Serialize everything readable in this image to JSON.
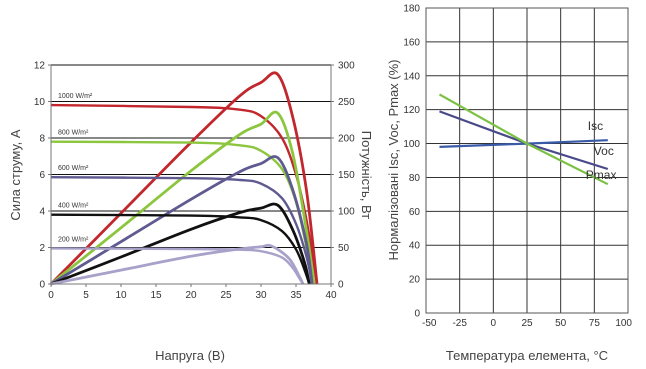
{
  "captions": {
    "left": "Напруга (В)",
    "right": "Температура елемента, °C"
  },
  "chart_data": [
    {
      "type": "line",
      "xlim": [
        0,
        40
      ],
      "ylim": [
        0,
        12
      ],
      "y2lim": [
        0,
        300
      ],
      "x_ticks": [
        "0",
        "5",
        "10",
        "15",
        "20",
        "25",
        "30",
        "35",
        "40"
      ],
      "y_ticks": [
        "0",
        "2",
        "4",
        "6",
        "8",
        "10",
        "12"
      ],
      "y2_ticks": [
        "0",
        "50",
        "100",
        "150",
        "200",
        "250",
        "300"
      ],
      "xlabel": "Напруга (В)",
      "ylabel": "Сила струму, А",
      "y2label": "Потужність, Вт",
      "grid": "horizontal",
      "series": [
        {
          "name": "1000 W/m²",
          "color": "#c1272d",
          "isc": 9.8,
          "voc": 38.0,
          "iv_points": [
            [
              0,
              9.8
            ],
            [
              20,
              9.7
            ],
            [
              27,
              9.55
            ],
            [
              30,
              9.2
            ],
            [
              33,
              8.0
            ],
            [
              35,
              6.0
            ],
            [
              36.5,
              3.5
            ],
            [
              38.0,
              0
            ]
          ],
          "power_points": [
            [
              0,
              0
            ],
            [
              10,
              97
            ],
            [
              20,
              194
            ],
            [
              27,
              258
            ],
            [
              30,
              276
            ],
            [
              32.4,
              287
            ],
            [
              34.5,
              230
            ],
            [
              36.5,
              128
            ],
            [
              38.0,
              0
            ]
          ]
        },
        {
          "name": "800 W/m²",
          "color": "#8cc63f",
          "isc": 7.8,
          "voc": 37.6,
          "iv_points": [
            [
              0,
              7.8
            ],
            [
              20,
              7.75
            ],
            [
              27,
              7.6
            ],
            [
              30,
              7.3
            ],
            [
              33,
              6.3
            ],
            [
              35,
              4.5
            ],
            [
              36.5,
              2.0
            ],
            [
              37.6,
              0
            ]
          ],
          "power_points": [
            [
              0,
              0
            ],
            [
              10,
              77
            ],
            [
              20,
              155
            ],
            [
              27,
              205
            ],
            [
              30,
              219
            ],
            [
              32.4,
              234
            ],
            [
              34.5,
              180
            ],
            [
              36.5,
              73
            ],
            [
              37.6,
              0
            ]
          ]
        },
        {
          "name": "600 W/m²",
          "color": "#5f5a8f",
          "isc": 5.85,
          "voc": 37.3,
          "iv_points": [
            [
              0,
              5.85
            ],
            [
              20,
              5.8
            ],
            [
              27,
              5.7
            ],
            [
              30,
              5.5
            ],
            [
              33,
              4.7
            ],
            [
              35,
              3.3
            ],
            [
              36.5,
              1.5
            ],
            [
              37.3,
              0
            ]
          ],
          "power_points": [
            [
              0,
              0
            ],
            [
              10,
              58
            ],
            [
              20,
              116
            ],
            [
              27,
              154
            ],
            [
              30,
              165
            ],
            [
              32.4,
              173
            ],
            [
              34.5,
              130
            ],
            [
              36.5,
              55
            ],
            [
              37.3,
              0
            ]
          ]
        },
        {
          "name": "400 W/m²",
          "color": "#111111",
          "isc": 3.8,
          "voc": 36.9,
          "iv_points": [
            [
              0,
              3.8
            ],
            [
              20,
              3.75
            ],
            [
              27,
              3.65
            ],
            [
              30,
              3.5
            ],
            [
              33,
              2.9
            ],
            [
              35,
              1.9
            ],
            [
              36.2,
              0.8
            ],
            [
              36.9,
              0
            ]
          ],
          "power_points": [
            [
              0,
              0
            ],
            [
              10,
              37
            ],
            [
              20,
              75
            ],
            [
              27,
              98
            ],
            [
              30,
              104
            ],
            [
              32.4,
              108
            ],
            [
              34.5,
              75
            ],
            [
              36.2,
              30
            ],
            [
              36.9,
              0
            ]
          ]
        },
        {
          "name": "200 W/m²",
          "color": "#a8a1c9",
          "isc": 1.95,
          "voc": 36.0,
          "iv_points": [
            [
              0,
              1.95
            ],
            [
              20,
              1.92
            ],
            [
              27,
              1.88
            ],
            [
              30,
              1.8
            ],
            [
              33,
              1.45
            ],
            [
              34.5,
              0.9
            ],
            [
              35.5,
              0.3
            ],
            [
              36.0,
              0
            ]
          ],
          "power_points": [
            [
              0,
              0
            ],
            [
              10,
              19
            ],
            [
              20,
              38
            ],
            [
              27,
              48
            ],
            [
              30,
              51
            ],
            [
              31.5,
              52
            ],
            [
              34.0,
              35
            ],
            [
              35.5,
              10
            ],
            [
              36.0,
              0
            ]
          ]
        }
      ]
    },
    {
      "type": "line",
      "xlim": [
        -50,
        100
      ],
      "ylim": [
        0,
        180
      ],
      "x_ticks": [
        "-50",
        "-25",
        "0",
        "25",
        "50",
        "75",
        "100"
      ],
      "y_ticks": [
        "0",
        "20",
        "40",
        "60",
        "80",
        "100",
        "120",
        "140",
        "160",
        "180"
      ],
      "xlabel": "Температура елемента, °C",
      "ylabel": "Нормалізовані Isc, Voc, Pmax (%)",
      "grid": "both",
      "series": [
        {
          "name": "Isc",
          "color": "#3a5ba8",
          "x": [
            -40,
            25,
            85
          ],
          "y": [
            98,
            100,
            102
          ]
        },
        {
          "name": "Voc",
          "color": "#4a4a8a",
          "x": [
            -40,
            25,
            85
          ],
          "y": [
            119,
            100,
            85
          ]
        },
        {
          "name": "Pmax",
          "color": "#7ac143",
          "x": [
            -40,
            25,
            85
          ],
          "y": [
            129,
            100,
            76
          ]
        }
      ]
    }
  ]
}
